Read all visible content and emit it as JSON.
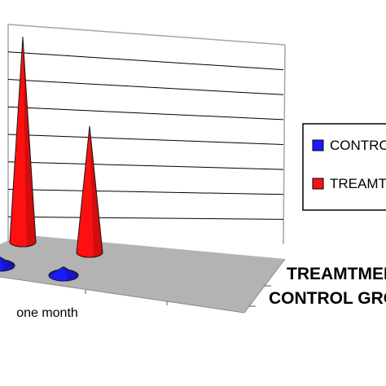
{
  "chart_data": {
    "type": "bar",
    "style": "3d-cone",
    "categories": [
      "",
      "one month"
    ],
    "depth_labels": [
      "TREAMTMENT",
      "CONTROL GROUP"
    ],
    "series": [
      {
        "name": "CONTROL",
        "color": "#1a1aff",
        "values": [
          0.3,
          0.3
        ]
      },
      {
        "name": "TREAMTMENT",
        "color": "#ff1010",
        "values": [
          7.3,
          4.5
        ]
      }
    ],
    "ylim": [
      0,
      8
    ],
    "grid": true,
    "legend_position": "right",
    "colors": {
      "floor": "#b3b3b3",
      "wall_line": "#a6a6a6",
      "grid_line": "#000000"
    }
  }
}
